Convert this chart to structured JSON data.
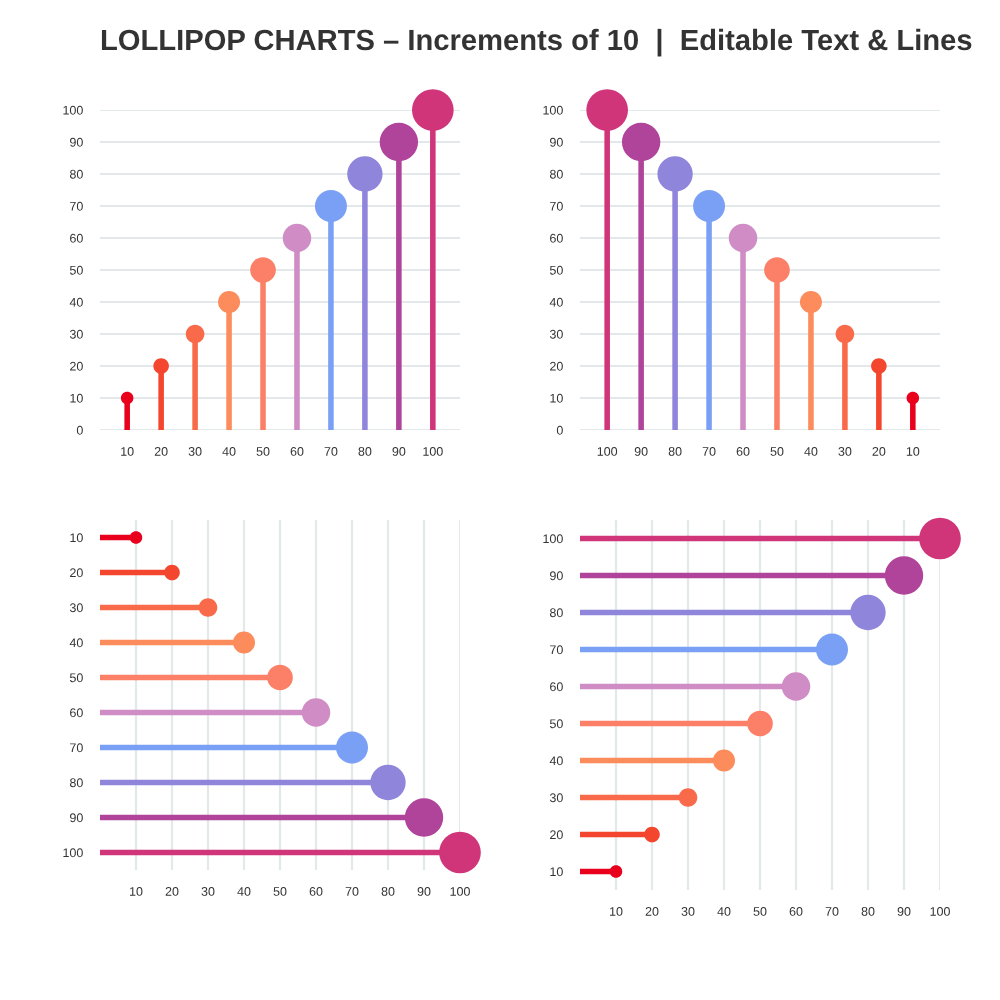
{
  "chart_data": [
    {
      "type": "lollipop",
      "title": "LOLLIPOP CHARTS – Increments of 10  |  Editable Text & Lines",
      "categories": [
        "10",
        "20",
        "30",
        "40",
        "50",
        "60",
        "70",
        "80",
        "90",
        "100"
      ],
      "values": [
        10,
        20,
        30,
        40,
        50,
        60,
        70,
        80,
        90,
        100
      ],
      "sizes": [
        0.09,
        0.14,
        0.2,
        0.28,
        0.38,
        0.47,
        0.59,
        0.72,
        0.85,
        1
      ],
      "colors": [
        "#e8001c",
        "#f4452e",
        "#f96a4a",
        "#fd8c5c",
        "#fb8067",
        "#d08cc4",
        "#7aa0f5",
        "#8f86dc",
        "#b0449a",
        "#d0357a"
      ],
      "ylim": [
        0,
        100
      ],
      "yticks": [
        0,
        10,
        20,
        30,
        40,
        50,
        60,
        70,
        80,
        90,
        100
      ],
      "grid": "y",
      "marker": "circle"
    },
    {
      "type": "lollipop",
      "categories": [
        "100",
        "90",
        "80",
        "70",
        "60",
        "50",
        "40",
        "30",
        "20",
        "10"
      ],
      "values": [
        100,
        90,
        80,
        70,
        60,
        50,
        40,
        30,
        20,
        10
      ],
      "sizes": [
        1,
        0.85,
        0.72,
        0.59,
        0.47,
        0.38,
        0.28,
        0.2,
        0.14,
        0.09
      ],
      "colors": [
        "#d0357a",
        "#b0449a",
        "#8f86dc",
        "#7aa0f5",
        "#d08cc4",
        "#fb8067",
        "#fd8c5c",
        "#f96a4a",
        "#f4452e",
        "#e8001c"
      ],
      "ylim": [
        0,
        100
      ],
      "yticks": [
        0,
        10,
        20,
        30,
        40,
        50,
        60,
        70,
        80,
        90,
        100
      ],
      "grid": "y",
      "marker": "circle"
    },
    {
      "type": "lollipop",
      "orientation": "horizontal",
      "categories": [
        "10",
        "20",
        "30",
        "40",
        "50",
        "60",
        "70",
        "80",
        "90",
        "100"
      ],
      "values": [
        10,
        20,
        30,
        40,
        50,
        60,
        70,
        80,
        90,
        100
      ],
      "sizes": [
        0.09,
        0.14,
        0.2,
        0.28,
        0.38,
        0.47,
        0.59,
        0.72,
        0.85,
        1
      ],
      "colors": [
        "#e8001c",
        "#f4452e",
        "#f96a4a",
        "#fd8c5c",
        "#fb8067",
        "#d08cc4",
        "#7aa0f5",
        "#8f86dc",
        "#b0449a",
        "#d0357a"
      ],
      "xlim": [
        0,
        100
      ],
      "xticks": [
        10,
        20,
        30,
        40,
        50,
        60,
        70,
        80,
        90,
        100
      ],
      "grid": "x",
      "marker": "circle"
    },
    {
      "type": "lollipop",
      "orientation": "horizontal",
      "categories": [
        "100",
        "90",
        "80",
        "70",
        "60",
        "50",
        "40",
        "30",
        "20",
        "10"
      ],
      "values": [
        100,
        90,
        80,
        70,
        60,
        50,
        40,
        30,
        20,
        10
      ],
      "sizes": [
        1,
        0.85,
        0.72,
        0.59,
        0.47,
        0.38,
        0.28,
        0.2,
        0.14,
        0.09
      ],
      "colors": [
        "#d0357a",
        "#b0449a",
        "#8f86dc",
        "#7aa0f5",
        "#d08cc4",
        "#fb8067",
        "#fd8c5c",
        "#f96a4a",
        "#f4452e",
        "#e8001c"
      ],
      "xlim": [
        0,
        100
      ],
      "xticks": [
        10,
        20,
        30,
        40,
        50,
        60,
        70,
        80,
        90,
        100
      ],
      "grid": "x",
      "marker": "circle"
    }
  ]
}
